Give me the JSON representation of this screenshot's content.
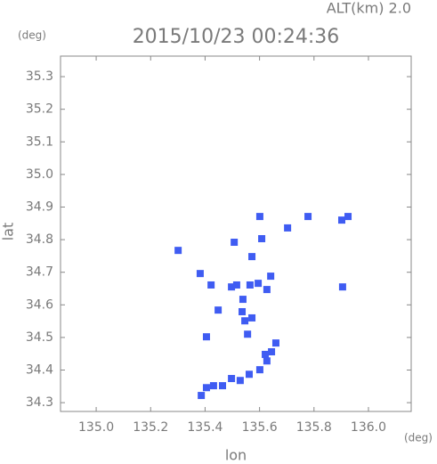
{
  "chart_data": {
    "type": "scatter",
    "title": "2015/10/23 00:24:36",
    "subtitle": "ALT(km) 2.0",
    "x_label": "lon",
    "y_label": "lat",
    "x_unit": "(deg)",
    "y_unit": "(deg)",
    "color": "#3f5cf2",
    "xlim": [
      134.869,
      136.157
    ],
    "ylim": [
      34.273,
      35.363
    ],
    "xticks": [
      {
        "value": 135.0,
        "label": "135.0"
      },
      135.2,
      135.4,
      135.6,
      135.8,
      {
        "value": 136.0,
        "label": "136.0"
      }
    ],
    "yticks": [
      34.3,
      34.4,
      34.5,
      34.6,
      34.7,
      34.8,
      34.9,
      {
        "value": 35.0,
        "label": "35.0"
      },
      35.1,
      35.2,
      35.3
    ],
    "grid": false,
    "x": [
      135.386,
      135.405,
      135.431,
      135.464,
      135.497,
      135.529,
      135.562,
      135.601,
      135.627,
      135.644,
      135.66,
      135.621,
      135.556,
      135.546,
      135.572,
      135.539,
      135.536,
      135.516,
      135.565,
      135.595,
      135.627,
      135.641,
      135.422,
      135.448,
      135.497,
      135.405,
      135.382,
      135.301,
      135.572,
      135.608,
      135.703,
      135.778,
      135.902,
      135.925,
      135.601,
      135.905,
      135.507
    ],
    "values": [
      34.322,
      34.346,
      34.352,
      34.352,
      34.374,
      34.368,
      34.387,
      34.401,
      34.428,
      34.456,
      34.483,
      34.448,
      34.51,
      34.551,
      34.56,
      34.617,
      34.579,
      34.661,
      34.661,
      34.666,
      34.647,
      34.688,
      34.661,
      34.584,
      34.655,
      34.502,
      34.696,
      34.767,
      34.748,
      34.803,
      34.836,
      34.871,
      34.86,
      34.871,
      34.871,
      34.655,
      34.792
    ]
  }
}
